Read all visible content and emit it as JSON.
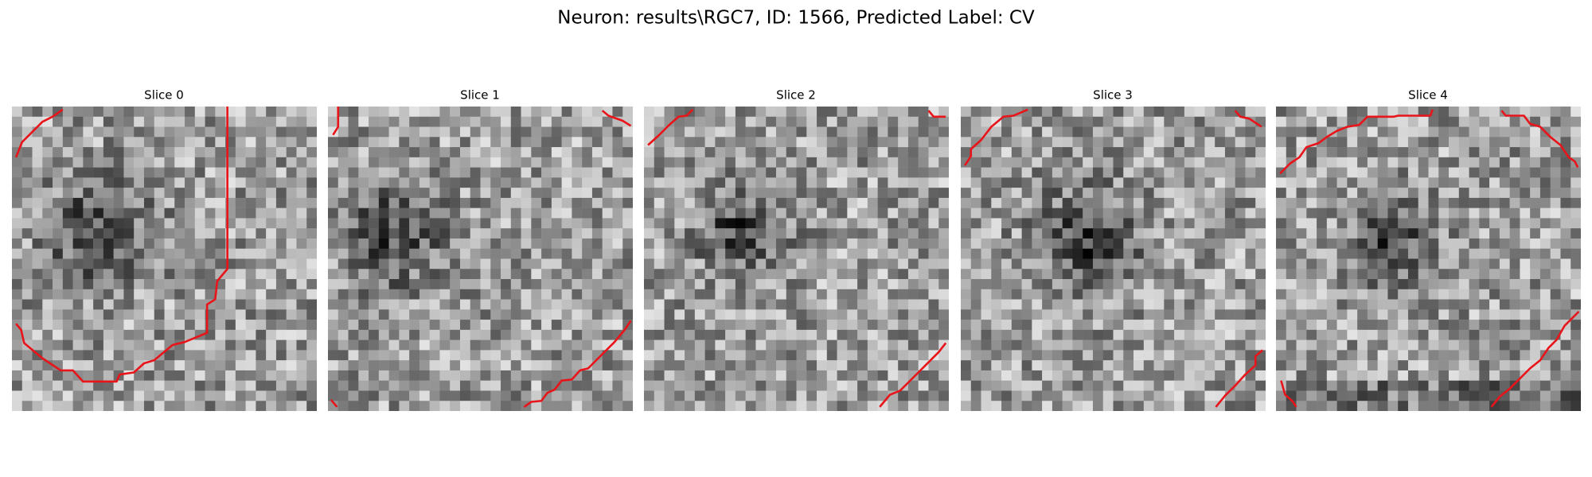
{
  "title": "Neuron: results\\RGC7, ID: 1566, Predicted Label: CV",
  "panels": [
    {
      "title": "Slice 0"
    },
    {
      "title": "Slice 1"
    },
    {
      "title": "Slice 2"
    },
    {
      "title": "Slice 3"
    },
    {
      "title": "Slice 4"
    }
  ]
}
